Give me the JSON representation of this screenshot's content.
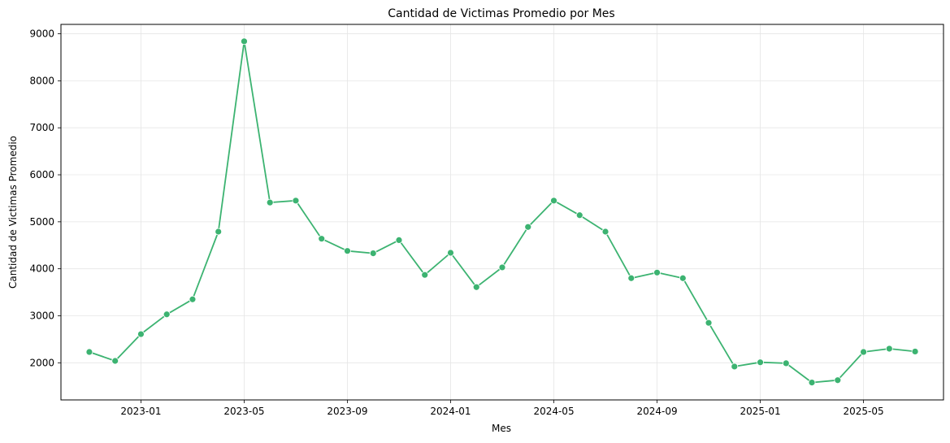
{
  "chart_data": {
    "type": "line",
    "title": "Cantidad de Victimas Promedio por Mes",
    "xlabel": "Mes",
    "ylabel": "Cantidad de Victimas Promedio",
    "x": [
      "2022-11",
      "2022-12",
      "2023-01",
      "2023-02",
      "2023-03",
      "2023-04",
      "2023-05",
      "2023-06",
      "2023-07",
      "2023-08",
      "2023-09",
      "2023-10",
      "2023-11",
      "2023-12",
      "2024-01",
      "2024-02",
      "2024-03",
      "2024-04",
      "2024-05",
      "2024-06",
      "2024-07",
      "2024-08",
      "2024-09",
      "2024-10",
      "2024-11",
      "2024-12",
      "2025-01",
      "2025-02",
      "2025-03",
      "2025-04",
      "2025-05",
      "2025-06",
      "2025-07"
    ],
    "series": [
      {
        "values": [
          2230,
          2040,
          2610,
          3030,
          3350,
          4790,
          8840,
          5410,
          5450,
          4640,
          4380,
          4330,
          4610,
          3870,
          4340,
          3610,
          4030,
          4890,
          5450,
          5140,
          4790,
          3800,
          3920,
          3800,
          2850,
          1920,
          2010,
          1990,
          1580,
          1630,
          2230,
          2300,
          2240
        ],
        "color": "#3cb371"
      }
    ],
    "xticks": [
      "2023-01",
      "2023-05",
      "2023-09",
      "2024-01",
      "2024-05",
      "2024-09",
      "2025-01",
      "2025-05"
    ],
    "yticks": [
      2000,
      3000,
      4000,
      5000,
      6000,
      7000,
      8000,
      9000
    ],
    "ylim": [
      1210,
      9200
    ],
    "grid": true,
    "legend": "none"
  }
}
